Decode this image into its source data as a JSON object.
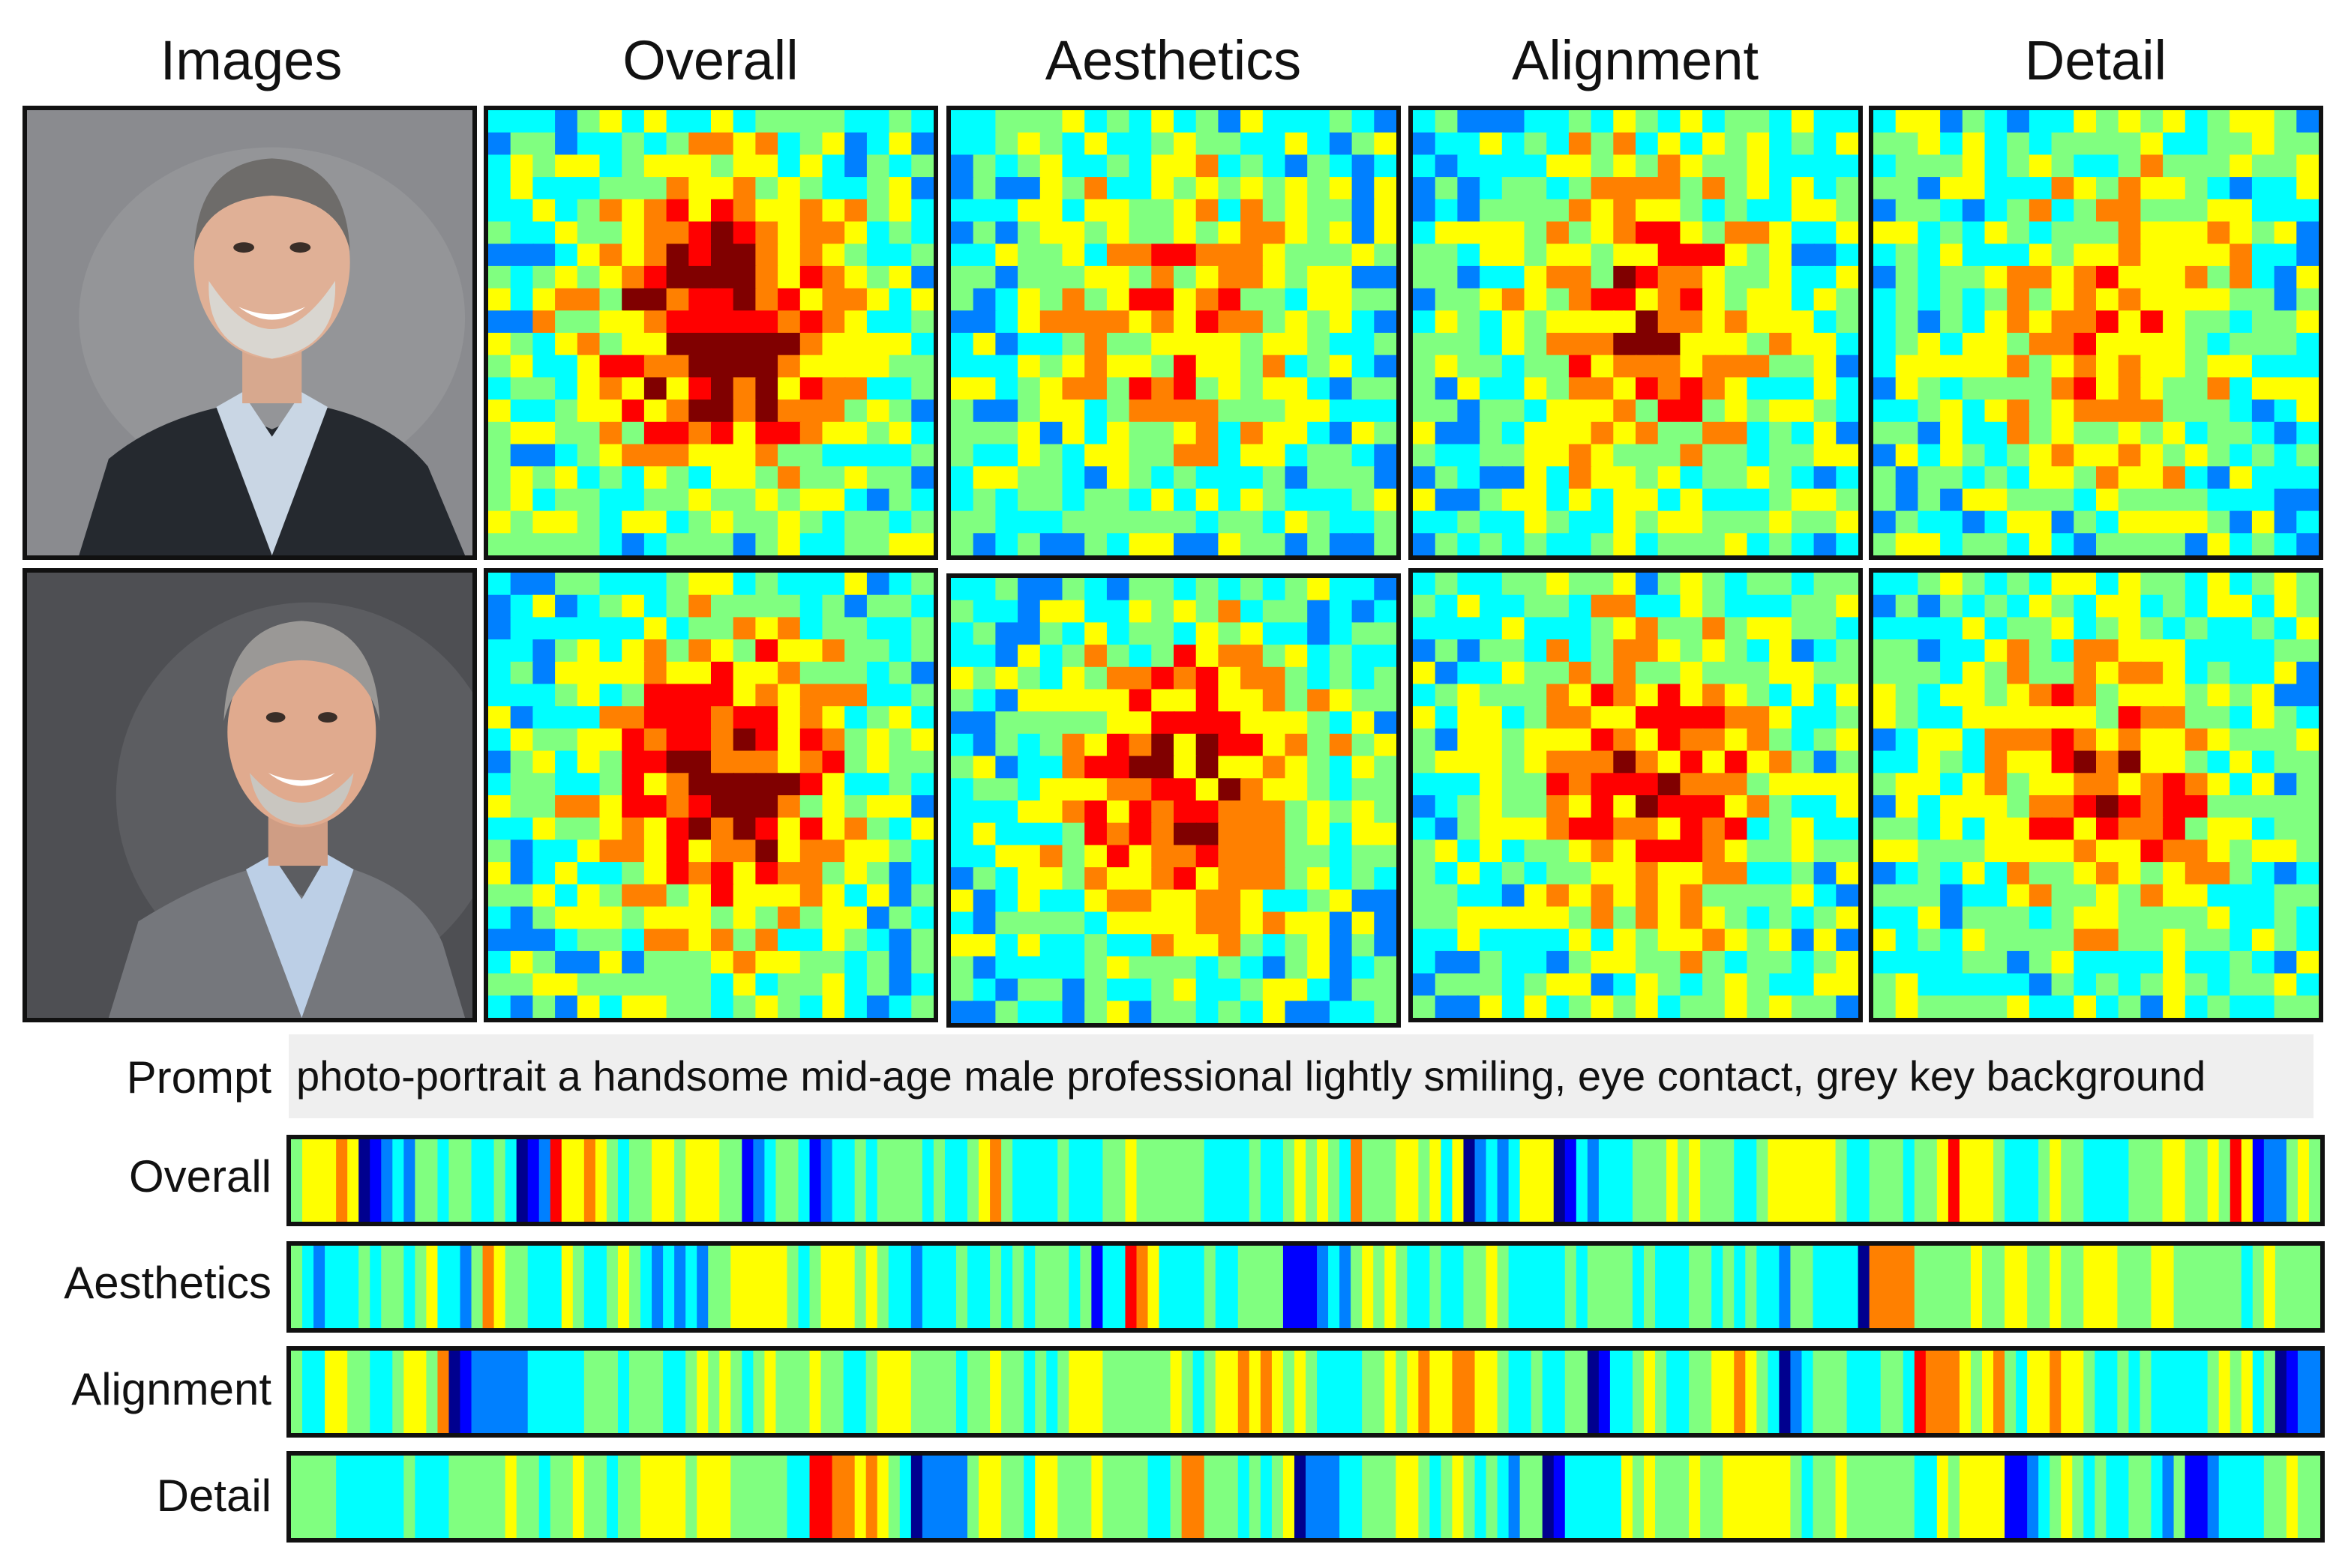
{
  "columns": [
    "Images",
    "Overall",
    "Aesthetics",
    "Alignment",
    "Detail"
  ],
  "prompt": {
    "label": "Prompt",
    "text": "photo-portrait a handsome mid-age male professional lightly smiling, eye contact, grey key background"
  },
  "token_rows": [
    "Overall",
    "Aesthetics",
    "Alignment",
    "Detail"
  ],
  "images": [
    {
      "name": "portrait-1",
      "background": "#8a8b8f",
      "suit": "#25292f"
    },
    {
      "name": "portrait-2",
      "background": "#4e4f53",
      "suit": "#75777c"
    }
  ],
  "colormap": [
    "#00008f",
    "#0000ff",
    "#0080ff",
    "#00ffff",
    "#80ff80",
    "#ffff00",
    "#ff8000",
    "#ff0000",
    "#800000"
  ]
}
